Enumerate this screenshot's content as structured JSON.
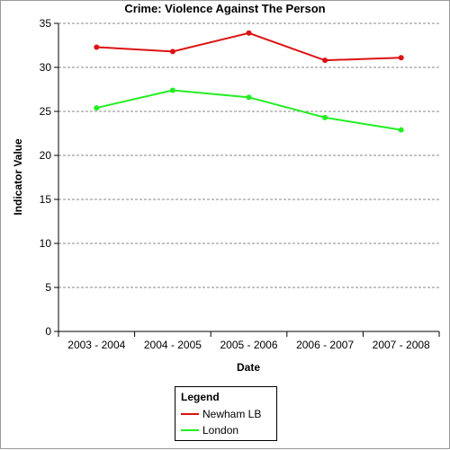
{
  "chart_data": {
    "type": "line",
    "title": "Crime: Violence Against The Person",
    "xlabel": "Date",
    "ylabel": "Indicator Value",
    "categories": [
      "2003 - 2004",
      "2004 - 2005",
      "2005 - 2006",
      "2006 - 2007",
      "2007 - 2008"
    ],
    "ylim": [
      0,
      35
    ],
    "yticks": [
      0,
      5,
      10,
      15,
      20,
      25,
      30,
      35
    ],
    "grid": "horizontal dashed",
    "legend_title": "Legend",
    "legend_position": "bottom-center",
    "series": [
      {
        "name": "Newham LB",
        "color": "#dd1111",
        "values": [
          32.3,
          31.8,
          33.9,
          30.8,
          31.1
        ]
      },
      {
        "name": "London",
        "color": "#22ee22",
        "values": [
          25.4,
          27.4,
          26.6,
          24.3,
          22.9
        ]
      }
    ]
  }
}
